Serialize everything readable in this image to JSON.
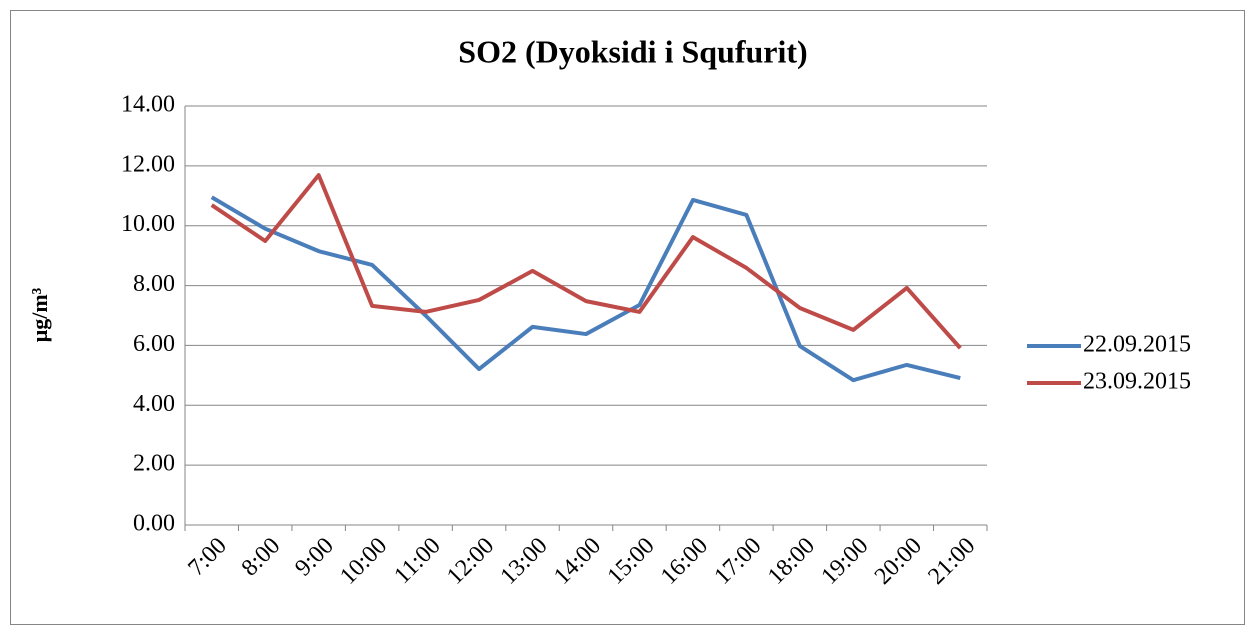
{
  "chart_data": {
    "type": "line",
    "title": "SO2  (Dyoksidi i Squfurit)",
    "y_label": "μg/m³",
    "categories": [
      "7:00",
      "8:00",
      "9:00",
      "10:00",
      "11:00",
      "12:00",
      "13:00",
      "14:00",
      "15:00",
      "16:00",
      "17:00",
      "18:00",
      "19:00",
      "20:00",
      "21:00"
    ],
    "series": [
      {
        "name": "22.09.2015",
        "color": "#4a7ebb",
        "values": [
          10.95,
          9.9,
          9.15,
          8.69,
          7.0,
          5.21,
          6.62,
          6.38,
          7.35,
          10.86,
          10.36,
          5.98,
          4.84,
          5.35,
          4.91
        ]
      },
      {
        "name": "23.09.2015",
        "color": "#be4b48",
        "values": [
          10.69,
          9.49,
          11.69,
          7.32,
          7.12,
          7.52,
          8.49,
          7.48,
          7.12,
          9.62,
          8.59,
          7.25,
          6.52,
          7.92,
          5.91
        ]
      }
    ],
    "ylim": [
      0,
      14
    ],
    "yticks": [
      {
        "value": 0,
        "label": "0.00"
      },
      {
        "value": 2,
        "label": "2.00"
      },
      {
        "value": 4,
        "label": "4.00"
      },
      {
        "value": 6,
        "label": "6.00"
      },
      {
        "value": 8,
        "label": "8.00"
      },
      {
        "value": 10,
        "label": "10.00"
      },
      {
        "value": 12,
        "label": "12.00"
      },
      {
        "value": 14,
        "label": "14.00"
      }
    ],
    "grid": true,
    "legend": "right"
  }
}
